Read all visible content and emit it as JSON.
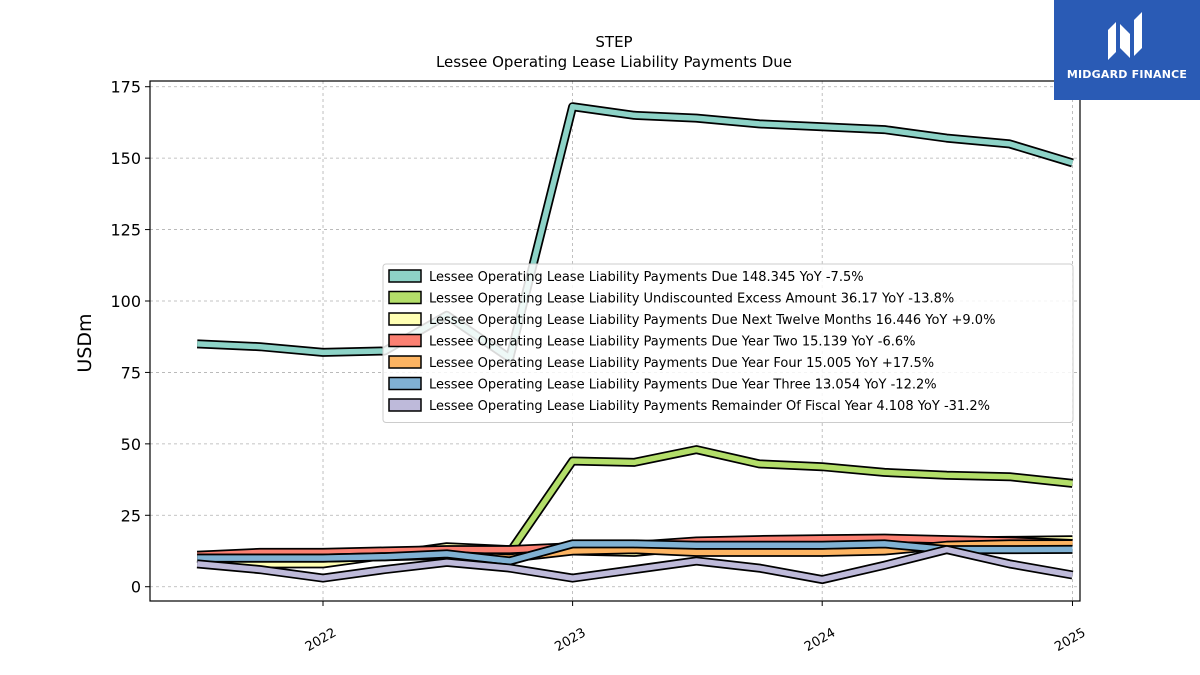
{
  "brand": {
    "name": "MIDGARD FINANCE",
    "color": "#2a5bb5"
  },
  "chart_data": {
    "type": "line",
    "title": "STEP",
    "subtitle": "Lessee Operating Lease Liability Payments Due",
    "ylabel": "USDm",
    "xlabel": "",
    "ylim": [
      -5,
      177
    ],
    "yticks": [
      0,
      25,
      50,
      75,
      100,
      125,
      150,
      175
    ],
    "xlim": [
      "2021-04-23",
      "2025-01-12"
    ],
    "xticks": [
      "2022",
      "2023",
      "2024",
      "2025"
    ],
    "grid": true,
    "legend_position": "center-right",
    "x": [
      "2021-07-01",
      "2021-10-01",
      "2022-01-01",
      "2022-04-01",
      "2022-07-01",
      "2022-10-01",
      "2023-01-01",
      "2023-04-01",
      "2023-07-01",
      "2023-10-01",
      "2024-01-01",
      "2024-04-01",
      "2024-07-01",
      "2024-10-01",
      "2025-01-01"
    ],
    "series": [
      {
        "name": "Lessee Operating Lease Liability Payments Due",
        "legend": "Lessee Operating Lease Liability Payments Due  148.345 YoY -7.5%",
        "color": "#8dd3c7",
        "values": [
          85,
          84,
          82,
          82.5,
          95,
          80,
          168,
          165,
          164,
          162,
          161,
          160,
          157,
          155,
          148.345
        ]
      },
      {
        "name": "Lessee Operating Lease Liability Undiscounted Excess Amount",
        "legend": "Lessee Operating Lease Liability Undiscounted Excess Amount  36.17 YoY -13.8%",
        "color": "#b3de69",
        "values": [
          10,
          10,
          10,
          11,
          12,
          12,
          44,
          43.5,
          48,
          43,
          42,
          40,
          39,
          38.5,
          36.17
        ]
      },
      {
        "name": "Lessee Operating Lease Liability Payments Due Next Twelve Months",
        "legend": "Lessee Operating Lease Liability Payments Due Next Twelve Months  16.446 YoY +9.0%",
        "color": "#ffffb3",
        "values": [
          10,
          8,
          8,
          11,
          14,
          13,
          12.5,
          12,
          14,
          14,
          14.5,
          15,
          16,
          16.2,
          16.446
        ]
      },
      {
        "name": "Lessee Operating Lease Liability Payments Due Year Two",
        "legend": "Lessee Operating Lease Liability Payments Due Year Two  15.139 YoY -6.6%",
        "color": "#fb8072",
        "values": [
          11,
          12,
          12,
          12.5,
          13,
          13,
          14,
          14.5,
          16,
          16.5,
          16.8,
          17,
          16.5,
          16,
          15.139
        ]
      },
      {
        "name": "Lessee Operating Lease Liability Payments Due Year Four",
        "legend": "Lessee Operating Lease Liability Payments Due Year Four  15.005 YoY +17.5%",
        "color": "#fdb462",
        "values": [
          10,
          10,
          10,
          10.5,
          11,
          10,
          12.5,
          13,
          12,
          12,
          12,
          12.5,
          14.5,
          15,
          15.005
        ]
      },
      {
        "name": "Lessee Operating Lease Liability Payments Due Year Three",
        "legend": "Lessee Operating Lease Liability Payments Due Year Three  13.054 YoY -12.2%",
        "color": "#80b1d3",
        "values": [
          10,
          10,
          10,
          10.5,
          11.5,
          9,
          15,
          15,
          14.5,
          14.5,
          14.5,
          15,
          13,
          13,
          13.054
        ]
      },
      {
        "name": "Lessee Operating Lease Liability Payments Remainder Of Fiscal Year",
        "legend": "Lessee Operating Lease Liability Payments Remainder Of Fiscal Year  4.108 YoY -31.2%",
        "color": "#bebada",
        "values": [
          8,
          6,
          3,
          6,
          8.5,
          6.5,
          3,
          6,
          9,
          6.5,
          2.5,
          7.5,
          13,
          8,
          4.108
        ]
      }
    ]
  }
}
